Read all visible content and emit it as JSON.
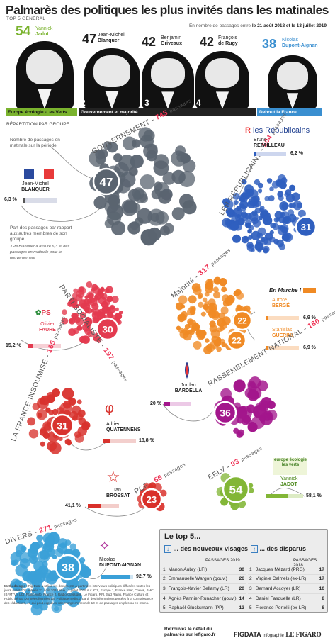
{
  "header": {
    "title": "Palmarès des politiques les plus invités dans les matinales",
    "top5_label": "TOP 5 GÉNÉRAL",
    "period_prefix": "En nombre de passages entre",
    "period_dates": "le 21 août 2018 et le 13 juillet 2019"
  },
  "top5_general": [
    {
      "rank": "1",
      "count": "54",
      "first": "Yannick",
      "last": "Jadot"
    },
    {
      "rank": "2",
      "count": "47",
      "first": "Jean-Michel",
      "last": "Blanquer"
    },
    {
      "rank": "3",
      "count": "42",
      "first": "Benjamin",
      "last": "Griveaux"
    },
    {
      "rank": "4",
      "count": "42",
      "first": "François",
      "last": "de Rugy"
    },
    {
      "rank": "5",
      "count": "38",
      "first": "Nicolas",
      "last": "Dupont-Aignan"
    }
  ],
  "group_bars": {
    "eelv": "Europe écologie -Les Verts",
    "gouv": "Gouvernement et majorité",
    "dlf": "Debout la France"
  },
  "repartition_label": "RÉPARTITION PAR GROUPE",
  "legend": {
    "passages_note": "Nombre de passages en matinale sur la période",
    "example_first": "Jean-Michel",
    "example_last": "BLANQUER",
    "example_pct": "6,3 %",
    "example_count": "47",
    "share_note": "Part des passages par rapport aux autres membres de son groupe",
    "footnote": "J.-M Blanquer a assuré 6,3 % des passages en matinale pour le gouvernement"
  },
  "groups": {
    "gouvernement": {
      "label": "GOUVERNEMENT",
      "count": "745",
      "unit": "passages"
    },
    "republicains": {
      "label": "LES RÉPUBLICAINS",
      "count": "504",
      "unit": "passages",
      "logo": "les Républicains",
      "first": "Bruno",
      "last": "RETAILLEAU",
      "pct": "6,2 %",
      "personal": "31"
    },
    "ps": {
      "label": "PARTI SOCIALISTE",
      "count": "197",
      "unit": "passages",
      "logo": "PS",
      "first": "Olivier",
      "last": "FAURE",
      "pct": "15,2 %",
      "personal": "30"
    },
    "majorite": {
      "label": "Majorité",
      "count": "317",
      "unit": "passages",
      "logo": "En Marche !",
      "p1_first": "Aurore",
      "p1_last": "BERGÉ",
      "p1_pct": "6,9 %",
      "p2_first": "Stanislas",
      "p2_last": "GUERINI",
      "p2_pct": "6,9 %",
      "personal1": "22",
      "personal2": "22"
    },
    "lfi": {
      "label": "LA FRANCE INSOUMISE",
      "count": "165",
      "unit": "passages",
      "first": "Adrien",
      "last": "QUATENNENS",
      "pct": "18,8 %",
      "personal": "31"
    },
    "rn": {
      "label": "RASSEMBLEMENT NATIONAL",
      "count": "180",
      "unit": "passages",
      "first": "Jordan",
      "last": "BARDELLA",
      "pct": "20 %",
      "personal": "36"
    },
    "pcf": {
      "label": "PCF",
      "count": "56",
      "unit": "passages",
      "first": "Ian",
      "last": "BROSSAT",
      "pct": "41,1 %",
      "personal": "23"
    },
    "eelv": {
      "label": "EELV",
      "count": "93",
      "unit": "passages",
      "logo": "europe écologie les verts",
      "first": "Yannick",
      "last": "JADOT",
      "pct": "58,1 %",
      "personal": "54"
    },
    "divers": {
      "label": "DIVERS",
      "count": "271",
      "unit": "passages",
      "first": "Nicolas",
      "last": "DUPONT-AIGNAN",
      "pct": "92,7 %",
      "personal": "38"
    }
  },
  "top5_box": {
    "title": "Le top 5...",
    "new_title": "... des nouveaux visages",
    "gone_title": "... des disparus",
    "new_header": "PASSAGES 2019",
    "gone_header": "PASSAGES 2018",
    "new_rows": [
      {
        "rank": "1",
        "name": "Manon Aubry (LFI)",
        "value": "30"
      },
      {
        "rank": "2",
        "name": "Emmanuelle Wargon (gouv.)",
        "value": "26"
      },
      {
        "rank": "3",
        "name": "François-Xavier Bellamy (LR)",
        "value": "20"
      },
      {
        "rank": "4",
        "name": "Agnès Pannier-Runacher (gouv.)",
        "value": "14"
      },
      {
        "rank": "5",
        "name": "Raphaël Glucksmann (PP)",
        "value": "13"
      }
    ],
    "gone_rows": [
      {
        "rank": "1",
        "name": "Jacques Mézard (PRG)",
        "value": "17"
      },
      {
        "rank": "2",
        "name": "Virginie Calmels (ex-LR)",
        "value": "17"
      },
      {
        "rank": "3",
        "name": "Bernard Accoyer (LR)",
        "value": "10"
      },
      {
        "rank": "4",
        "name": "Daniel Fasquelle (LR)",
        "value": "8"
      },
      {
        "rank": "5",
        "name": "Florence Portelli (ex-LR)",
        "value": "8"
      }
    ]
  },
  "footer": {
    "method_title": "Méthodologie :",
    "method_text": "Fig Data a utilisé les documents à partir des interviews politiques diffusées toutes les jours avant 10h entre le 21 août 2018 et le 13 juillet 2019 sur RTL, Europe 1, France Inter, Cnews, BMC (BFMTV), LCI, Franceinfo, France 2, Radio Classique, Le Figaro, RFI, Sud Radio, France Culture et Public Sénat. Données fournies par Politiquemedia, à partir des informations portées à la connaissance des rédactions, ce qui peut expliquer une marge d'erreur de 10 % de passages en plus ou en moins.",
    "more": "Retrouvez le détail du palmarès sur lefigaro.fr",
    "brand1": "FIGDATA",
    "brand2": "Infographie",
    "brand3": "LE FIGARO"
  },
  "colors": {
    "accent": "#e8324e",
    "gouvernement": "#5a6470",
    "republicains": "#2f5fbf",
    "ps": "#e33a4f",
    "majorite": "#f08a24",
    "lfi": "#d8332e",
    "rn": "#a3168c",
    "pcf": "#d9302a",
    "eelv": "#82b636",
    "divers": "#3aa0d8"
  }
}
